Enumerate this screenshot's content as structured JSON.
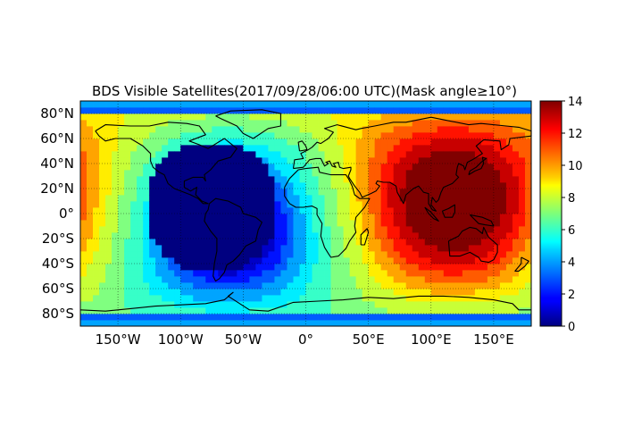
{
  "chart_data": {
    "type": "heatmap",
    "title": "BDS Visible Satellites(2017/09/28/06:00 UTC)(Mask angle≥10°)",
    "xlabel": "",
    "ylabel": "",
    "xlim": [
      -180,
      180
    ],
    "ylim": [
      -90,
      90
    ],
    "x_ticks": [
      {
        "value": -150,
        "label": "150°W"
      },
      {
        "value": -100,
        "label": "100°W"
      },
      {
        "value": -50,
        "label": "50°W"
      },
      {
        "value": 0,
        "label": "0°"
      },
      {
        "value": 50,
        "label": "50°E"
      },
      {
        "value": 100,
        "label": "100°E"
      },
      {
        "value": 150,
        "label": "150°E"
      }
    ],
    "y_ticks": [
      {
        "value": 80,
        "label": "80°N"
      },
      {
        "value": 60,
        "label": "60°N"
      },
      {
        "value": 40,
        "label": "40°N"
      },
      {
        "value": 20,
        "label": "20°N"
      },
      {
        "value": 0,
        "label": "0°"
      },
      {
        "value": -20,
        "label": "20°S"
      },
      {
        "value": -40,
        "label": "40°S"
      },
      {
        "value": -60,
        "label": "60°S"
      },
      {
        "value": -80,
        "label": "80°S"
      }
    ],
    "grid": true,
    "colormap": "jet",
    "colorbar": {
      "min": 0,
      "max": 14,
      "ticks": [
        "0",
        "2",
        "4",
        "6",
        "8",
        "10",
        "12",
        "14"
      ],
      "position": "right"
    },
    "cell_size_deg": 5,
    "hotspot": {
      "lon": 118,
      "lat": 10,
      "peak_value": 14
    },
    "coldspot": {
      "lon": -75,
      "lat": 5,
      "min_value": 0
    },
    "value_at_poles": 3
  }
}
